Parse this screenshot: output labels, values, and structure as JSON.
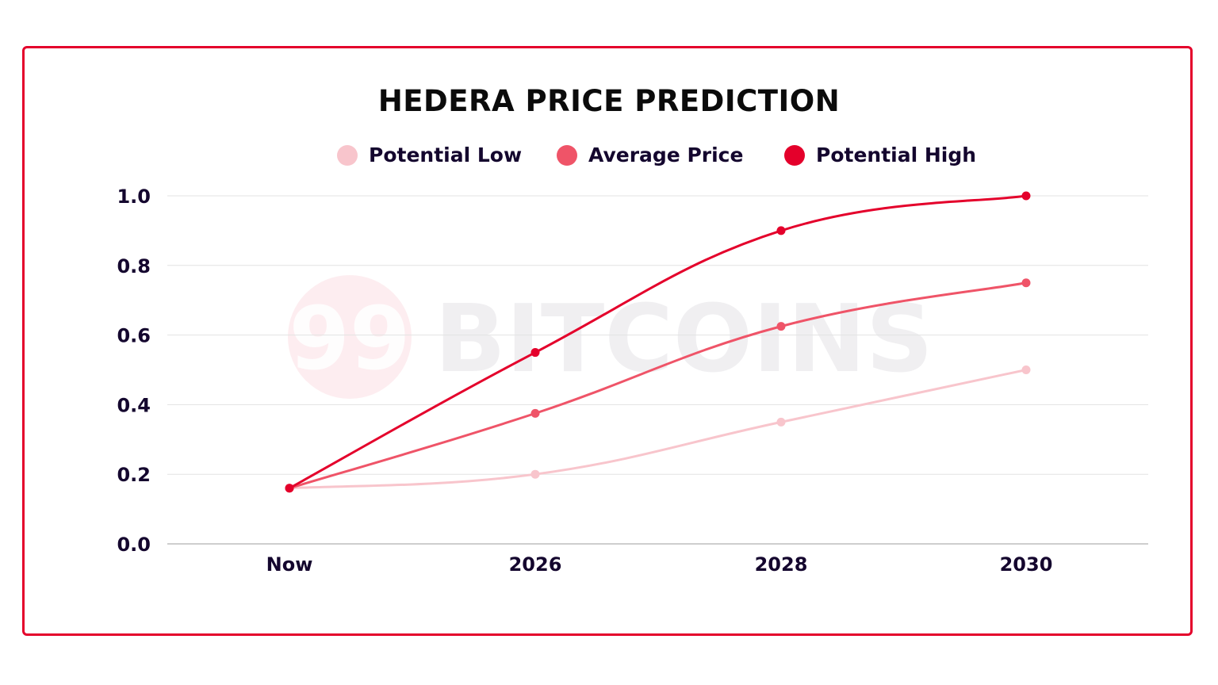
{
  "chart_data": {
    "type": "line",
    "title": "HEDERA PRICE PREDICTION",
    "categories": [
      "Now",
      "2026",
      "2028",
      "2030"
    ],
    "series": [
      {
        "name": "Potential Low",
        "color": "#f8c5cc",
        "values": [
          0.16,
          0.2,
          0.35,
          0.5
        ]
      },
      {
        "name": "Average Price",
        "color": "#ef5468",
        "values": [
          0.16,
          0.375,
          0.625,
          0.75
        ]
      },
      {
        "name": "Potential High",
        "color": "#e4002b",
        "values": [
          0.16,
          0.55,
          0.9,
          1.0
        ]
      }
    ],
    "yticks": [
      "0.0",
      "0.2",
      "0.4",
      "0.6",
      "0.8",
      "1.0"
    ],
    "ylim": [
      0,
      1.0
    ],
    "xlabel": "",
    "ylabel": "",
    "grid": true,
    "legend": "top",
    "watermark": "99 BITCOINS"
  }
}
